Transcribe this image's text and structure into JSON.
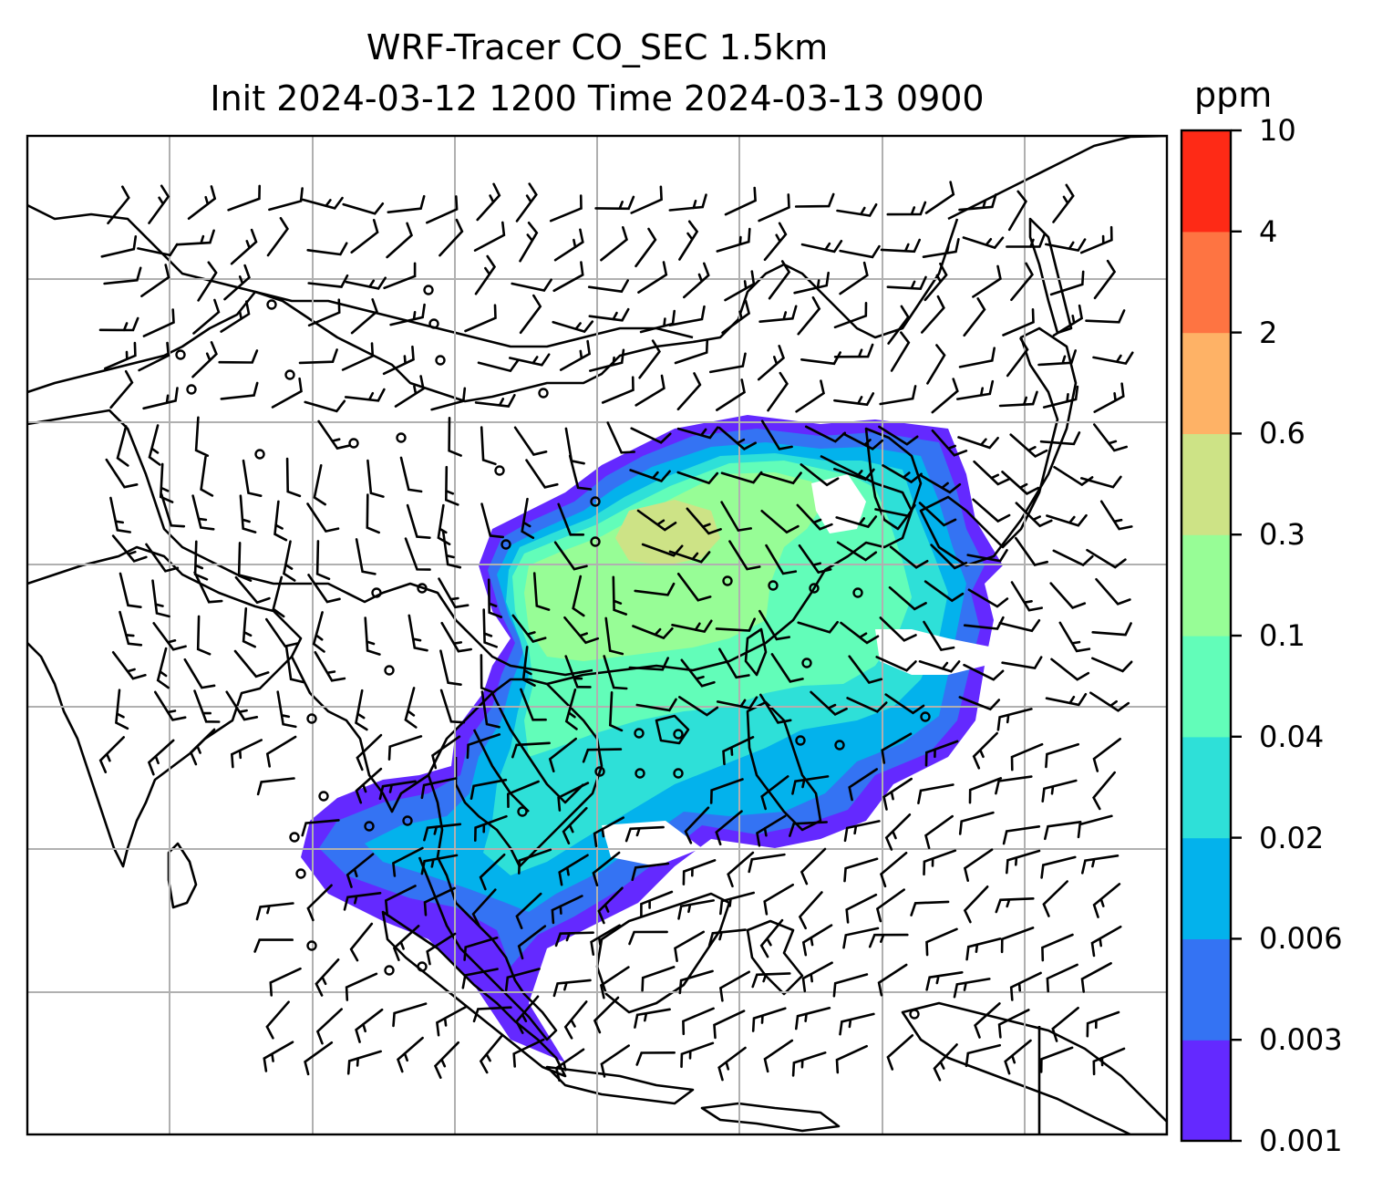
{
  "title": {
    "line1": "WRF-Tracer CO_SEC 1.5km",
    "line2": "Init 2024-03-12 1200 Time 2024-03-13 0900"
  },
  "colorbar": {
    "unit": "ppm",
    "levels": [
      "0.001",
      "0.003",
      "0.006",
      "0.02",
      "0.04",
      "0.1",
      "0.3",
      "0.6",
      "2",
      "4",
      "10"
    ],
    "colors": [
      "#6429ff",
      "#3473f3",
      "#03b2ec",
      "#2ee0d8",
      "#62fdb9",
      "#97fd96",
      "#cde386",
      "#feb266",
      "#fe7442",
      "#fe2a16"
    ]
  },
  "map": {
    "wind_symbol": "wind-barb",
    "calm_symbol": "calm-circle",
    "gridlines": true
  }
}
